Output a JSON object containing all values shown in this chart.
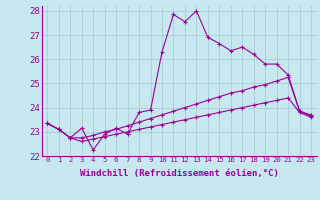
{
  "background_color": "#c8e8f0",
  "grid_color": "#a8ccd8",
  "line_color": "#990099",
  "xlim": [
    -0.5,
    23.5
  ],
  "ylim": [
    22,
    28.2
  ],
  "yticks": [
    22,
    23,
    24,
    25,
    26,
    27,
    28
  ],
  "xticks": [
    0,
    1,
    2,
    3,
    4,
    5,
    6,
    7,
    8,
    9,
    10,
    11,
    12,
    13,
    14,
    15,
    16,
    17,
    18,
    19,
    20,
    21,
    22,
    23
  ],
  "xlabel": "Windchill (Refroidissement éolien,°C)",
  "xlabel_fontsize": 6.5,
  "ytick_fontsize": 6.5,
  "xtick_fontsize": 5.2,
  "line1_x": [
    0,
    1,
    2,
    3,
    4,
    5,
    6,
    7,
    8,
    9,
    10,
    11,
    12,
    13,
    14,
    15,
    16,
    17,
    18,
    19,
    20,
    21,
    22,
    23
  ],
  "line1_y": [
    23.35,
    23.1,
    22.75,
    23.15,
    22.25,
    22.9,
    23.15,
    22.9,
    23.8,
    23.9,
    26.3,
    27.85,
    27.55,
    28.0,
    26.9,
    26.65,
    26.35,
    26.5,
    26.2,
    25.8,
    25.8,
    25.35,
    23.85,
    23.7
  ],
  "line2_x": [
    0,
    1,
    2,
    3,
    4,
    5,
    6,
    7,
    8,
    9,
    10,
    11,
    12,
    13,
    14,
    15,
    16,
    17,
    18,
    19,
    20,
    21,
    22,
    23
  ],
  "line2_y": [
    23.35,
    23.1,
    22.75,
    22.75,
    22.85,
    23.0,
    23.1,
    23.25,
    23.4,
    23.55,
    23.7,
    23.85,
    24.0,
    24.15,
    24.3,
    24.45,
    24.6,
    24.7,
    24.85,
    24.95,
    25.1,
    25.25,
    23.85,
    23.65
  ],
  "line3_x": [
    0,
    1,
    2,
    3,
    4,
    5,
    6,
    7,
    8,
    9,
    10,
    11,
    12,
    13,
    14,
    15,
    16,
    17,
    18,
    19,
    20,
    21,
    22,
    23
  ],
  "line3_y": [
    23.35,
    23.1,
    22.75,
    22.6,
    22.7,
    22.8,
    22.9,
    23.0,
    23.1,
    23.2,
    23.3,
    23.4,
    23.5,
    23.6,
    23.7,
    23.8,
    23.9,
    24.0,
    24.1,
    24.2,
    24.3,
    24.4,
    23.8,
    23.6
  ]
}
